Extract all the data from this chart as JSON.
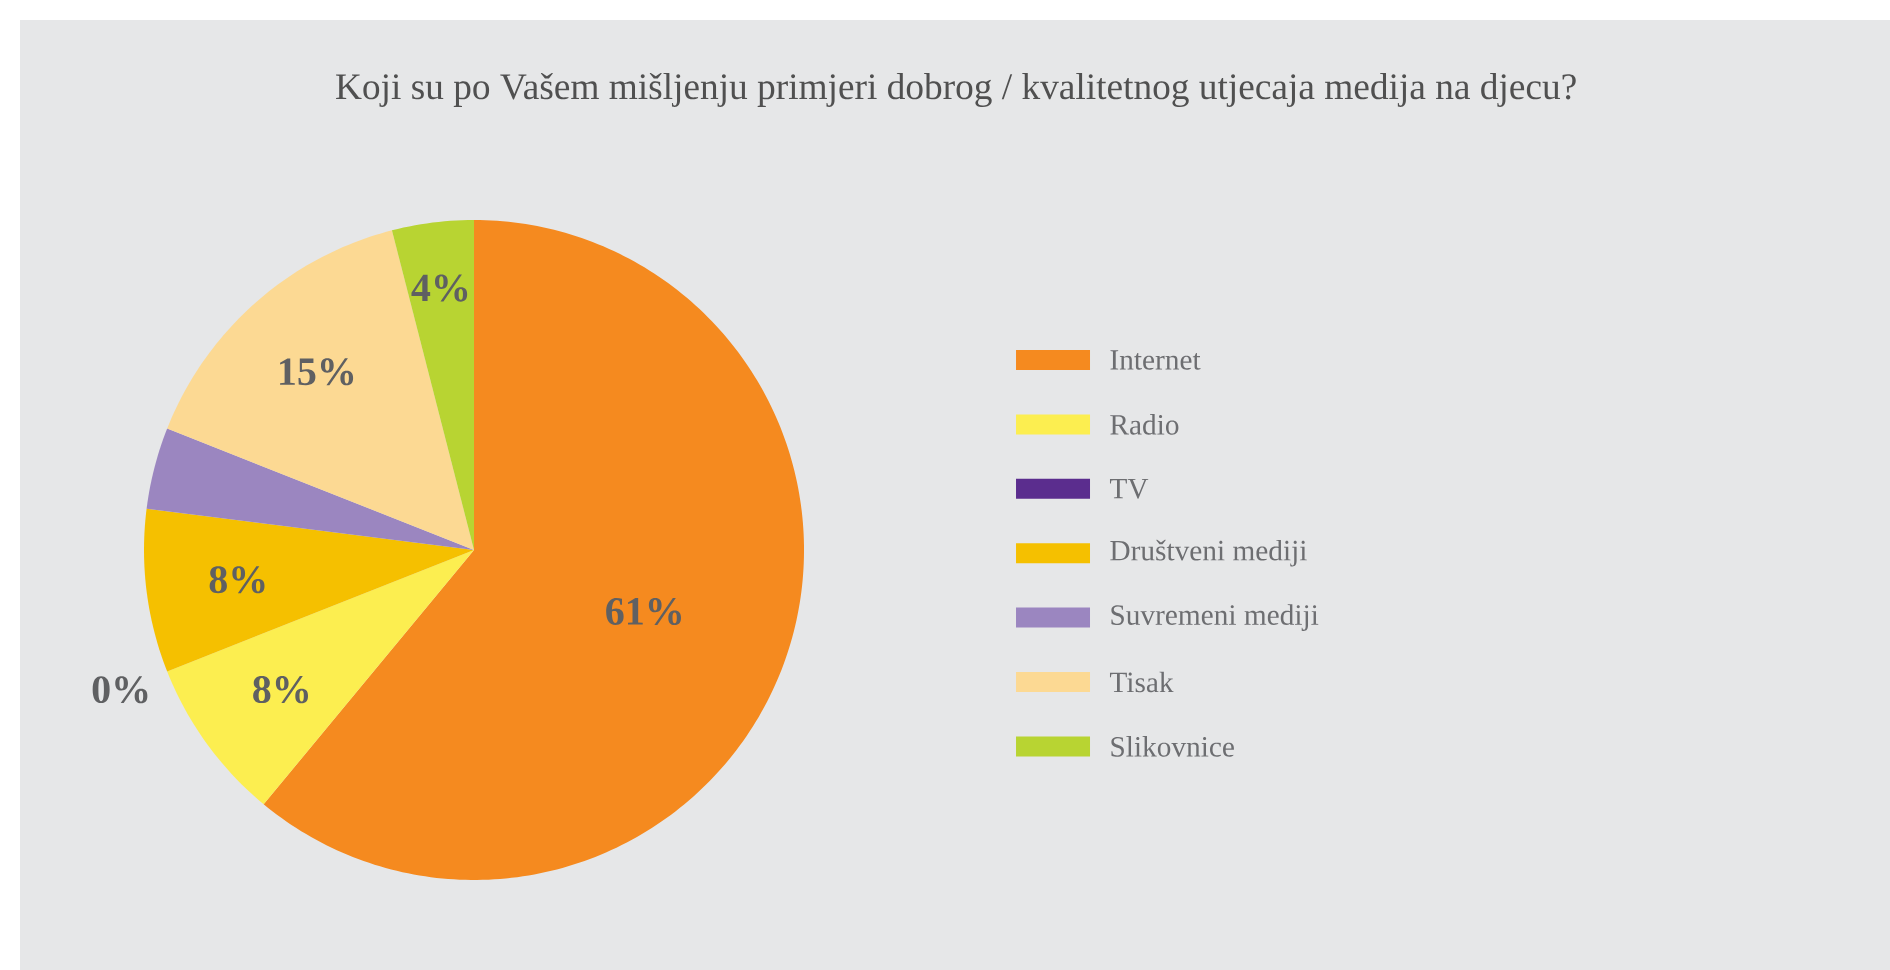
{
  "chart_data": {
    "type": "pie",
    "title": "Koji su po Vašem mišljenju primjeri dobrog / kvalitetnog utjecaja medija na djecu?",
    "categories": [
      "Internet",
      "Radio",
      "TV",
      "Društveni mediji",
      "Suvremeni mediji",
      "Tisak",
      "Slikovnice"
    ],
    "values": [
      61,
      8,
      0,
      8,
      4,
      15,
      4
    ],
    "value_labels": [
      "61%",
      "8%",
      "0%",
      "8%",
      null,
      "15%",
      "4%"
    ],
    "colors": [
      "#f58a1f",
      "#fcee50",
      "#5b2d8e",
      "#f5c000",
      "#9b86c0",
      "#fcd993",
      "#b8d432"
    ],
    "legend": "right"
  }
}
